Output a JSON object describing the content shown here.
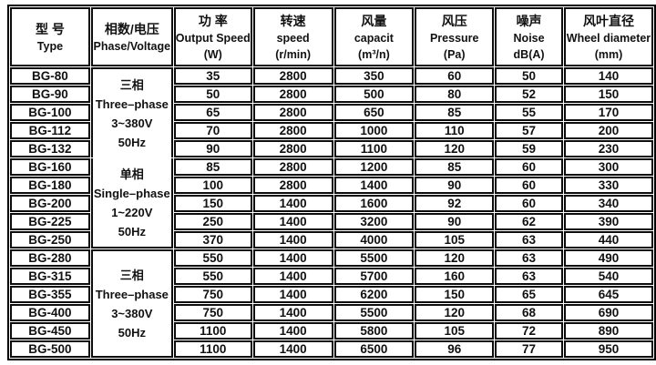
{
  "colors": {
    "background": "#ffffff",
    "border": "#000000",
    "text": "#111111"
  },
  "table": {
    "columns": [
      {
        "zh": "型 号",
        "en": "Type",
        "unit": ""
      },
      {
        "zh": "相数/电压",
        "en": "Phase/Voltage",
        "unit": ""
      },
      {
        "zh": "功 率",
        "en": "Output Speed",
        "unit": "(W)"
      },
      {
        "zh": "转速",
        "en": "speed",
        "unit": "(r/min)"
      },
      {
        "zh": "风量",
        "en": "capacit",
        "unit": "(m³/n)"
      },
      {
        "zh": "风压",
        "en": "Pressure",
        "unit": "(Pa)"
      },
      {
        "zh": "噪声",
        "en": "Noise",
        "unit": "dB(A)"
      },
      {
        "zh": "风叶直径",
        "en": "Wheel diameter",
        "unit": "(mm)"
      }
    ],
    "groups": [
      {
        "lines": [
          "三相",
          "Three–phase",
          "3~380V",
          "50Hz"
        ],
        "rowspan": 5
      },
      {
        "lines": [
          "单相",
          "Single–phase",
          "1~220V",
          "50Hz"
        ],
        "rowspan": 5
      },
      {
        "lines": [
          "三相",
          "Three–phase",
          "3~380V",
          "50Hz"
        ],
        "rowspan": 6
      }
    ],
    "rows": [
      {
        "type": "BG-80",
        "power": "35",
        "speed": "2800",
        "capacity": "350",
        "pressure": "60",
        "noise": "50",
        "wheel": "140",
        "group_start": 0
      },
      {
        "type": "BG-90",
        "power": "50",
        "speed": "2800",
        "capacity": "500",
        "pressure": "80",
        "noise": "52",
        "wheel": "150"
      },
      {
        "type": "BG-100",
        "power": "65",
        "speed": "2800",
        "capacity": "650",
        "pressure": "85",
        "noise": "55",
        "wheel": "170"
      },
      {
        "type": "BG-112",
        "power": "70",
        "speed": "2800",
        "capacity": "1000",
        "pressure": "110",
        "noise": "57",
        "wheel": "200"
      },
      {
        "type": "BG-132",
        "power": "90",
        "speed": "2800",
        "capacity": "1100",
        "pressure": "120",
        "noise": "59",
        "wheel": "230"
      },
      {
        "type": "BG-160",
        "power": "85",
        "speed": "2800",
        "capacity": "1200",
        "pressure": "85",
        "noise": "60",
        "wheel": "300",
        "group_start": 1
      },
      {
        "type": "BG-180",
        "power": "100",
        "speed": "2800",
        "capacity": "1400",
        "pressure": "90",
        "noise": "60",
        "wheel": "330"
      },
      {
        "type": "BG-200",
        "power": "150",
        "speed": "1400",
        "capacity": "1600",
        "pressure": "92",
        "noise": "60",
        "wheel": "340"
      },
      {
        "type": "BG-225",
        "power": "250",
        "speed": "1400",
        "capacity": "3200",
        "pressure": "90",
        "noise": "62",
        "wheel": "390"
      },
      {
        "type": "BG-250",
        "power": "370",
        "speed": "1400",
        "capacity": "4000",
        "pressure": "105",
        "noise": "63",
        "wheel": "440"
      },
      {
        "type": "BG-280",
        "power": "550",
        "speed": "1400",
        "capacity": "5500",
        "pressure": "120",
        "noise": "63",
        "wheel": "490",
        "group_start": 2
      },
      {
        "type": "BG-315",
        "power": "550",
        "speed": "1400",
        "capacity": "5700",
        "pressure": "160",
        "noise": "63",
        "wheel": "540"
      },
      {
        "type": "BG-355",
        "power": "750",
        "speed": "1400",
        "capacity": "6200",
        "pressure": "150",
        "noise": "65",
        "wheel": "645"
      },
      {
        "type": "BG-400",
        "power": "750",
        "speed": "1400",
        "capacity": "5500",
        "pressure": "120",
        "noise": "68",
        "wheel": "690"
      },
      {
        "type": "BG-450",
        "power": "1100",
        "speed": "1400",
        "capacity": "5800",
        "pressure": "105",
        "noise": "72",
        "wheel": "890"
      },
      {
        "type": "BG-500",
        "power": "1100",
        "speed": "1400",
        "capacity": "6500",
        "pressure": "96",
        "noise": "77",
        "wheel": "950"
      }
    ]
  }
}
